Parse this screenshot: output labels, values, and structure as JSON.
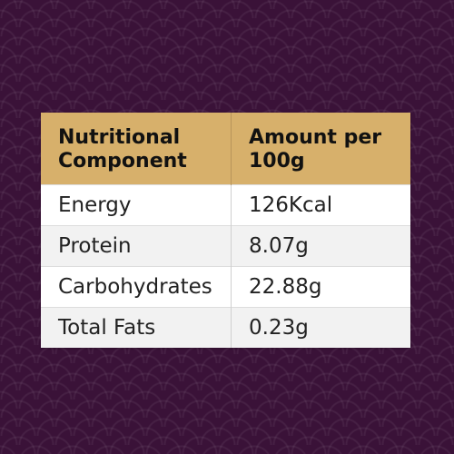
{
  "table": {
    "headers": [
      "Nutritional Component",
      "Amount per 100g"
    ],
    "rows": [
      [
        "Energy",
        "126Kcal"
      ],
      [
        "Protein",
        "8.07g"
      ],
      [
        "Carbohydrates",
        "22.88g"
      ],
      [
        "Total Fats",
        "0.23g"
      ]
    ]
  },
  "colors": {
    "background": "#3a1238",
    "header": "#d7b06b",
    "row_alt": "#f2f2f2"
  }
}
